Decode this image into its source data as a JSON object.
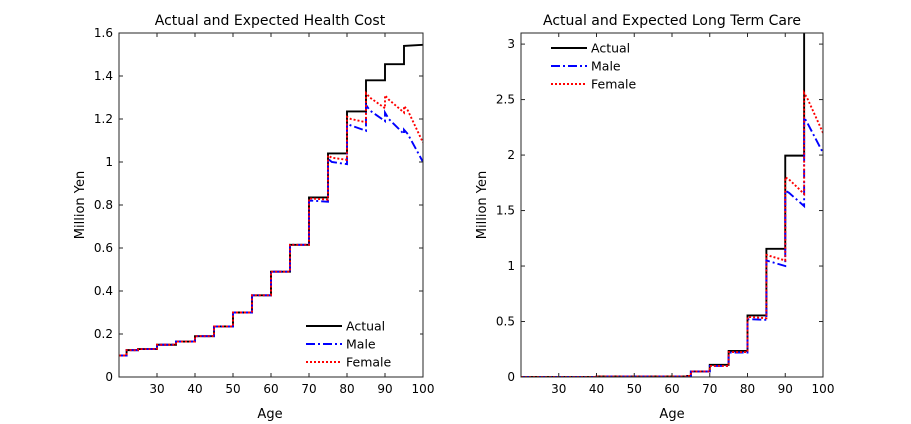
{
  "chart_data": [
    {
      "type": "line",
      "title": "Actual and Expected Health Cost",
      "xlabel": "Age",
      "ylabel": "Million Yen",
      "xlim": [
        20,
        100
      ],
      "ylim": [
        0,
        1.6
      ],
      "xticks": [
        "30",
        "40",
        "50",
        "60",
        "70",
        "80",
        "90",
        "100"
      ],
      "yticks": [
        "0",
        "0.2",
        "0.4",
        "0.6",
        "0.8",
        "1",
        "1.2",
        "1.4",
        "1.6"
      ],
      "grid": false,
      "legend_position": "bottom-right",
      "series": [
        {
          "name": "Actual",
          "color": "#000000",
          "x": [
            20,
            22,
            22,
            25,
            25,
            30,
            30,
            35,
            35,
            40,
            40,
            45,
            45,
            50,
            50,
            55,
            55,
            60,
            60,
            65,
            65,
            70,
            70,
            75,
            75,
            80,
            80,
            85,
            85,
            90,
            90,
            95,
            95,
            100
          ],
          "y": [
            0.1,
            0.1,
            0.125,
            0.125,
            0.13,
            0.13,
            0.15,
            0.15,
            0.165,
            0.165,
            0.19,
            0.19,
            0.235,
            0.235,
            0.3,
            0.3,
            0.38,
            0.38,
            0.49,
            0.49,
            0.615,
            0.615,
            0.835,
            0.835,
            1.04,
            1.04,
            1.235,
            1.235,
            1.38,
            1.38,
            1.455,
            1.455,
            1.54,
            1.545
          ]
        },
        {
          "name": "Male",
          "color": "#0000ff",
          "x": [
            20,
            22,
            22,
            25,
            25,
            30,
            30,
            35,
            35,
            40,
            40,
            45,
            45,
            50,
            50,
            55,
            55,
            60,
            60,
            65,
            65,
            70,
            70,
            71,
            75,
            75,
            76,
            80,
            80,
            81,
            85,
            85,
            86,
            90,
            90,
            91,
            95,
            95,
            96,
            100
          ],
          "y": [
            0.1,
            0.1,
            0.125,
            0.125,
            0.13,
            0.13,
            0.15,
            0.15,
            0.165,
            0.165,
            0.19,
            0.19,
            0.235,
            0.235,
            0.3,
            0.3,
            0.38,
            0.38,
            0.49,
            0.49,
            0.615,
            0.615,
            0.82,
            0.82,
            0.815,
            1.015,
            1.0,
            0.99,
            1.18,
            1.17,
            1.145,
            1.265,
            1.24,
            1.19,
            1.23,
            1.2,
            1.13,
            1.15,
            1.13,
            1.0
          ]
        },
        {
          "name": "Female",
          "color": "#ff0000",
          "x": [
            20,
            22,
            22,
            25,
            25,
            30,
            30,
            35,
            35,
            40,
            40,
            45,
            45,
            50,
            50,
            55,
            55,
            60,
            60,
            65,
            65,
            70,
            70,
            71,
            75,
            75,
            76,
            80,
            80,
            81,
            85,
            85,
            86,
            90,
            90,
            91,
            95,
            95,
            96,
            100
          ],
          "y": [
            0.1,
            0.1,
            0.125,
            0.125,
            0.13,
            0.13,
            0.15,
            0.15,
            0.165,
            0.165,
            0.19,
            0.19,
            0.235,
            0.235,
            0.3,
            0.3,
            0.38,
            0.38,
            0.49,
            0.49,
            0.615,
            0.615,
            0.83,
            0.83,
            0.825,
            1.03,
            1.02,
            1.01,
            1.21,
            1.2,
            1.185,
            1.32,
            1.3,
            1.25,
            1.31,
            1.29,
            1.23,
            1.26,
            1.24,
            1.09
          ]
        }
      ]
    },
    {
      "type": "line",
      "title": "Actual and Expected Long Term Care",
      "xlabel": "Age",
      "ylabel": "Million Yen",
      "xlim": [
        20,
        100
      ],
      "ylim": [
        0,
        3.1
      ],
      "xticks": [
        "30",
        "40",
        "50",
        "60",
        "70",
        "80",
        "90",
        "100"
      ],
      "yticks": [
        "0",
        "0.5",
        "1",
        "1.5",
        "2",
        "2.5",
        "3"
      ],
      "grid": false,
      "legend_position": "top-left",
      "series": [
        {
          "name": "Actual",
          "color": "#000000",
          "x": [
            20,
            40,
            40,
            64,
            64,
            65,
            65,
            70,
            70,
            75,
            75,
            80,
            80,
            85,
            85,
            90,
            90,
            95,
            95,
            100
          ],
          "y": [
            0.0,
            0.0,
            0.005,
            0.005,
            0.01,
            0.01,
            0.05,
            0.05,
            0.11,
            0.11,
            0.235,
            0.235,
            0.555,
            0.555,
            1.155,
            1.155,
            1.995,
            1.995,
            3.12,
            3.12
          ]
        },
        {
          "name": "Male",
          "color": "#0000ff",
          "x": [
            20,
            40,
            40,
            64,
            64,
            65,
            65,
            70,
            70,
            75,
            75,
            80,
            80,
            81,
            85,
            85,
            86,
            90,
            90,
            91,
            95,
            95,
            96,
            100
          ],
          "y": [
            0.0,
            0.0,
            0.005,
            0.005,
            0.01,
            0.01,
            0.05,
            0.05,
            0.1,
            0.1,
            0.22,
            0.22,
            0.52,
            0.52,
            0.515,
            1.05,
            1.04,
            1.0,
            1.68,
            1.66,
            1.54,
            2.34,
            2.28,
            2.02
          ]
        },
        {
          "name": "Female",
          "color": "#ff0000",
          "x": [
            20,
            40,
            40,
            64,
            64,
            65,
            65,
            70,
            70,
            75,
            75,
            80,
            80,
            81,
            85,
            85,
            86,
            90,
            90,
            91,
            95,
            95,
            96,
            100
          ],
          "y": [
            0.0,
            0.0,
            0.005,
            0.005,
            0.01,
            0.01,
            0.05,
            0.05,
            0.1,
            0.1,
            0.225,
            0.225,
            0.54,
            0.54,
            0.53,
            1.1,
            1.09,
            1.05,
            1.8,
            1.78,
            1.65,
            2.56,
            2.5,
            2.2
          ]
        }
      ]
    }
  ]
}
